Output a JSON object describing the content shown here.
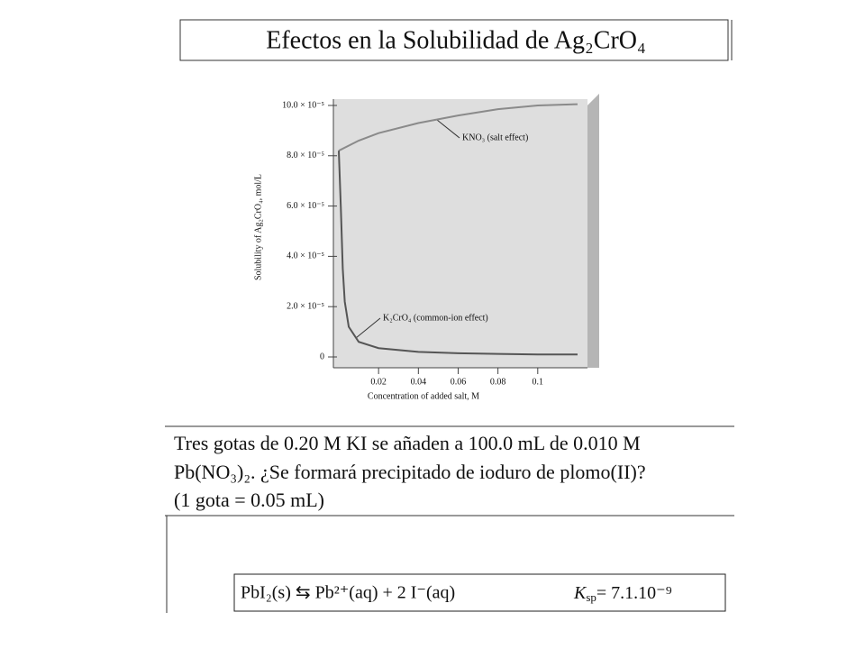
{
  "header": {
    "title": "Efectos en la Solubilidad de Ag₂CrO₄"
  },
  "chart_data": {
    "type": "line",
    "xlabel": "Concentration of added salt, M",
    "ylabel": "Solubility of Ag₂CrO₄, mol/L",
    "xlim": [
      0,
      0.125
    ],
    "ylim": [
      0,
      0.0001025
    ],
    "xticks": [
      0.02,
      0.04,
      0.06,
      0.08,
      0.1
    ],
    "yticks": [
      0,
      {
        "value": 2e-05,
        "label": "2.0 × 10⁻⁵"
      },
      {
        "value": 4e-05,
        "label": "4.0 × 10⁻⁵"
      },
      {
        "value": 6e-05,
        "label": "6.0 × 10⁻⁵"
      },
      {
        "value": 8e-05,
        "label": "8.0 × 10⁻⁵"
      },
      {
        "value": 0.0001,
        "label": "10.0 × 10⁻⁵"
      }
    ],
    "series": [
      {
        "name": "KNO₃ (salt effect)",
        "color": "#8a8a8a",
        "x": [
          0,
          0.01,
          0.02,
          0.04,
          0.06,
          0.08,
          0.1,
          0.12
        ],
        "values": [
          8.2e-05,
          8.6e-05,
          8.9e-05,
          9.3e-05,
          9.6e-05,
          9.85e-05,
          0.0001,
          0.0001005
        ]
      },
      {
        "name": "K₂CrO₄ (common-ion effect)",
        "color": "#555555",
        "x": [
          0,
          0.001,
          0.002,
          0.003,
          0.005,
          0.01,
          0.02,
          0.04,
          0.06,
          0.08,
          0.1,
          0.12
        ],
        "values": [
          8.2e-05,
          6e-05,
          3.5e-05,
          2.2e-05,
          1.2e-05,
          6e-06,
          3.5e-06,
          2e-06,
          1.5e-06,
          1.2e-06,
          1e-06,
          1e-06
        ]
      }
    ]
  },
  "problem": {
    "lines": [
      "Tres gotas de 0.20 M KI se añaden a 100.0 mL de 0.010 M",
      "Pb(NO₃)₂.  ¿Se formará precipitado de ioduro de plomo(II)?",
      "(1 gota = 0.05 mL)"
    ]
  },
  "equation": {
    "reaction": "PbI₂(s)  ⇆  Pb²⁺(aq) +  2 I⁻(aq)",
    "k_symbol": "K",
    "k_subscript": "sp",
    "k_value": "= 7.1.10⁻⁹"
  }
}
